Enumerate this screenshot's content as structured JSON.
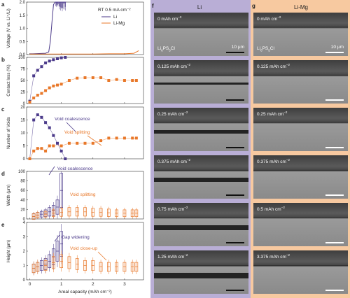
{
  "panel_letters": {
    "a": "a",
    "b": "b",
    "c": "c",
    "d": "d",
    "e": "e",
    "f": "f",
    "g": "g"
  },
  "column_titles": {
    "li": "Li",
    "limg": "Li-Mg"
  },
  "colors": {
    "li": "#4b3a8a",
    "limg": "#e8782a",
    "li_bg": "#b9aed6",
    "limg_bg": "#f7c9a0",
    "annot_li": "#4b3a8a",
    "annot_limg": "#e8782a"
  },
  "legend": {
    "condition": "RT 0.5 mA cm⁻²",
    "li": "Li",
    "limg": "Li-Mg"
  },
  "axes": {
    "a_ylabel": "Voltage (V vs. Li⁺/Li)",
    "b_ylabel": "Contact loss (%)",
    "c_ylabel": "Number of Voids",
    "d_ylabel": "Width (μm)",
    "e_ylabel": "Height (μm)",
    "xlabel": "Areal capacity (mAh cm⁻²)",
    "x_ticks": [
      "0",
      "1",
      "2",
      "3"
    ]
  },
  "annotations": {
    "c_li": "Void coalescence",
    "c_limg": "Void splitting",
    "d_li": "Void coalescence",
    "d_limg": "Void splitting",
    "e_li": "Gap widening",
    "e_limg": "Void close-up"
  },
  "sem": {
    "li_labels": [
      "0 mAh cm",
      "0.125 mAh cm",
      "0.25 mAh cm",
      "0.375 mAh cm",
      "0.75 mAh cm",
      "1.25 mAh cm"
    ],
    "limg_labels": [
      "0 mAh cm",
      "0.125 mAh cm",
      "0.25 mAh cm",
      "0.375 mAh cm",
      "0.5 mAh cm",
      "3.375 mAh cm"
    ],
    "unit_sup": "−2",
    "electrolyte_main": "Li",
    "electrolyte_sub1": "6",
    "electrolyte_mid": "PS",
    "electrolyte_sub2": "5",
    "electrolyte_end": "Cl",
    "scale": "10 μm"
  },
  "chart_data": [
    {
      "type": "line",
      "panel": "a",
      "ylabel": "Voltage (V vs. Li⁺/Li)",
      "ylim": [
        0,
        2.0
      ],
      "yticks": [
        0.0,
        0.5,
        1.0,
        1.5,
        2.0
      ],
      "xlim": [
        -0.1,
        3.6
      ],
      "series": [
        {
          "name": "Li",
          "x": [
            0,
            0.1,
            0.3,
            0.5,
            0.6,
            0.65,
            0.7,
            0.75,
            0.8,
            1.0,
            1.15
          ],
          "y": [
            0.03,
            0.03,
            0.04,
            0.05,
            0.1,
            0.5,
            1.2,
            1.9,
            2.0,
            2.0,
            2.0
          ]
        },
        {
          "name": "Li-Mg",
          "x": [
            0,
            0.5,
            1.0,
            1.5,
            2.0,
            2.5,
            3.0,
            3.3,
            3.45
          ],
          "y": [
            0.02,
            0.02,
            0.02,
            0.02,
            0.02,
            0.03,
            0.03,
            0.05,
            0.15
          ]
        }
      ]
    },
    {
      "type": "line",
      "panel": "b",
      "ylabel": "Contact loss (%)",
      "ylim": [
        0,
        100
      ],
      "yticks": [
        0,
        25,
        50,
        75,
        100
      ],
      "xlim": [
        -0.1,
        3.6
      ],
      "series": [
        {
          "name": "Li",
          "x": [
            0,
            0.125,
            0.25,
            0.375,
            0.5,
            0.625,
            0.75,
            0.875,
            1.0,
            1.125
          ],
          "y": [
            5,
            60,
            72,
            80,
            88,
            92,
            95,
            97,
            99,
            100
          ]
        },
        {
          "name": "Li-Mg",
          "x": [
            0,
            0.125,
            0.25,
            0.375,
            0.5,
            0.625,
            0.75,
            0.875,
            1.0,
            1.25,
            1.5,
            1.75,
            2.0,
            2.25,
            2.5,
            2.75,
            3.0,
            3.25,
            3.375
          ],
          "y": [
            3,
            12,
            18,
            22,
            28,
            34,
            38,
            40,
            42,
            50,
            55,
            56,
            56,
            56,
            50,
            52,
            50,
            50,
            50
          ]
        }
      ]
    },
    {
      "type": "line",
      "panel": "c",
      "ylabel": "Number of Voids",
      "ylim": [
        0,
        20
      ],
      "yticks": [
        0,
        5,
        10,
        15,
        20
      ],
      "xlim": [
        -0.1,
        3.6
      ],
      "series": [
        {
          "name": "Li",
          "x": [
            0,
            0.125,
            0.25,
            0.375,
            0.5,
            0.625,
            0.75,
            0.875,
            1.0,
            1.125
          ],
          "y": [
            0,
            15,
            17,
            16,
            14,
            12,
            9,
            6,
            3,
            0
          ]
        },
        {
          "name": "Li-Mg",
          "x": [
            0,
            0.125,
            0.25,
            0.375,
            0.5,
            0.625,
            0.75,
            1.0,
            1.25,
            1.5,
            1.75,
            2.0,
            2.25,
            2.5,
            2.75,
            3.0,
            3.25,
            3.375
          ],
          "y": [
            0,
            3,
            4,
            4,
            3,
            5,
            5,
            5,
            6,
            6,
            6,
            6,
            7,
            8,
            8,
            8,
            8,
            8
          ]
        }
      ]
    },
    {
      "type": "scatter",
      "panel": "d",
      "ylabel": "Width (μm)",
      "ylim": [
        0,
        100
      ],
      "yticks": [
        0,
        20,
        40,
        60,
        80,
        100
      ],
      "xlim": [
        -0.1,
        3.6
      ],
      "series": [
        {
          "name": "Li",
          "x": [
            0.125,
            0.25,
            0.375,
            0.5,
            0.625,
            0.75,
            0.875,
            1.0
          ],
          "y": [
            5,
            8,
            10,
            12,
            15,
            18,
            25,
            60
          ]
        },
        {
          "name": "Li-Mg",
          "x": [
            0.125,
            0.25,
            0.5,
            0.75,
            1.0,
            1.25,
            1.5,
            1.75,
            2.0,
            2.25,
            2.5,
            2.75,
            3.0,
            3.25,
            3.375
          ],
          "y": [
            5,
            8,
            10,
            12,
            14,
            15,
            15,
            15,
            14,
            14,
            13,
            12,
            12,
            12,
            12
          ]
        }
      ]
    },
    {
      "type": "scatter",
      "panel": "e",
      "ylabel": "Height (μm)",
      "ylim": [
        0,
        4
      ],
      "yticks": [
        0,
        1,
        2,
        3,
        4
      ],
      "xlim": [
        -0.1,
        3.6
      ],
      "series": [
        {
          "name": "Li",
          "x": [
            0.125,
            0.25,
            0.375,
            0.5,
            0.625,
            0.75,
            0.875,
            1.0
          ],
          "y": [
            0.8,
            0.9,
            1.0,
            1.1,
            1.3,
            1.6,
            2.0,
            2.5
          ]
        },
        {
          "name": "Li-Mg",
          "x": [
            0.125,
            0.25,
            0.5,
            0.75,
            1.0,
            1.25,
            1.5,
            1.75,
            2.0,
            2.25,
            2.5,
            2.75,
            3.0,
            3.25,
            3.375
          ],
          "y": [
            0.8,
            0.9,
            1.0,
            1.2,
            1.3,
            1.2,
            1.1,
            1.0,
            1.0,
            0.9,
            0.9,
            0.9,
            0.9,
            0.9,
            0.9
          ]
        }
      ]
    }
  ]
}
